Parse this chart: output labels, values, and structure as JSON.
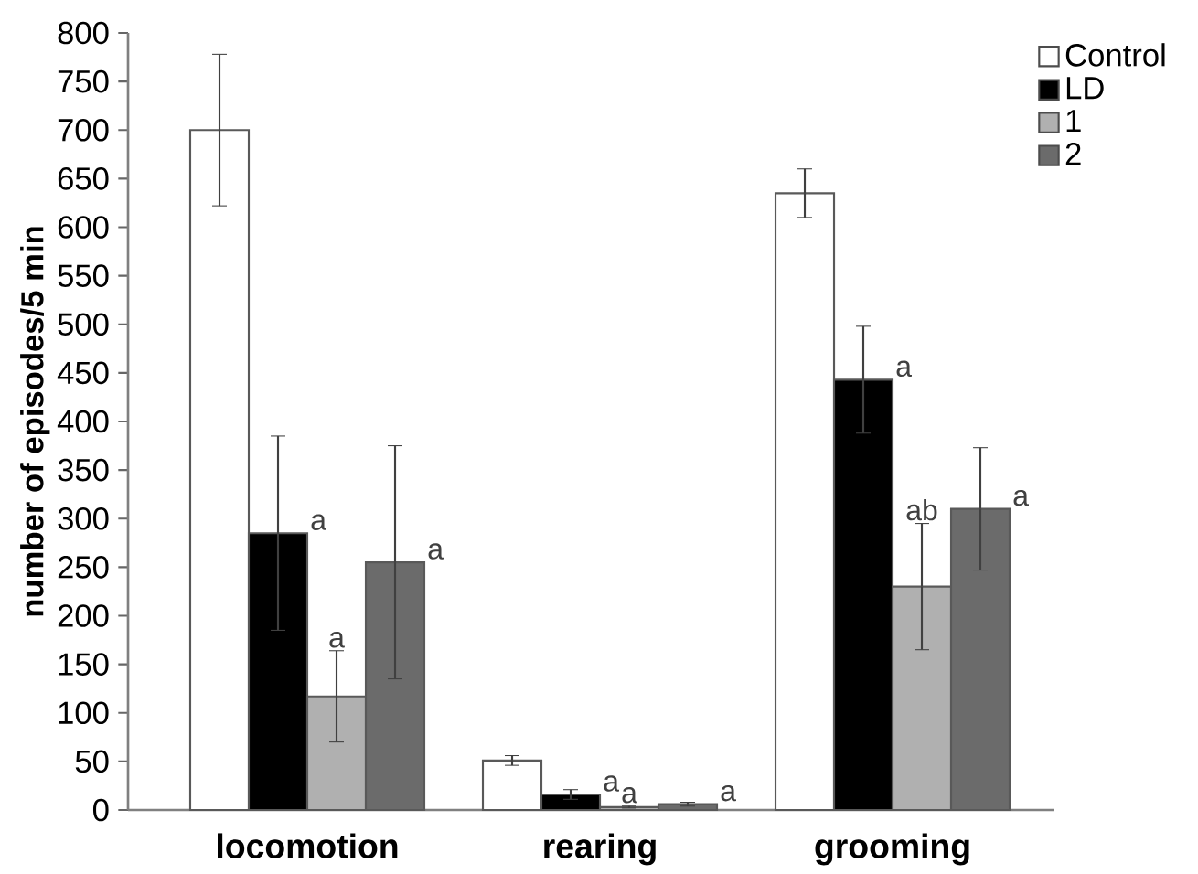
{
  "chart_data": {
    "type": "bar",
    "ylabel": "number of episodes/5 min",
    "categories": [
      "locomotion",
      "rearing",
      "grooming"
    ],
    "series": [
      {
        "name": "Control",
        "color": "#ffffff",
        "values": [
          700,
          51,
          635
        ],
        "errors": [
          78,
          5,
          25
        ]
      },
      {
        "name": "LD",
        "color": "#000000",
        "values": [
          285,
          16,
          443
        ],
        "errors": [
          100,
          5,
          55
        ],
        "value_labels": [
          "a",
          "a",
          "a"
        ]
      },
      {
        "name": "1",
        "color": "#b0b0b0",
        "values": [
          117,
          3,
          230
        ],
        "errors": [
          47,
          1,
          65
        ],
        "value_labels": [
          "a",
          "a",
          "ab"
        ]
      },
      {
        "name": "2",
        "color": "#6b6b6b",
        "values": [
          255,
          6,
          310
        ],
        "errors": [
          120,
          2,
          63
        ],
        "value_labels": [
          "a",
          "a",
          "a"
        ]
      }
    ],
    "ylim": [
      0,
      800
    ],
    "yticks": [
      0,
      50,
      100,
      150,
      200,
      250,
      300,
      350,
      400,
      450,
      500,
      550,
      600,
      650,
      700,
      750,
      800
    ],
    "grid": false,
    "legend": "top right"
  }
}
